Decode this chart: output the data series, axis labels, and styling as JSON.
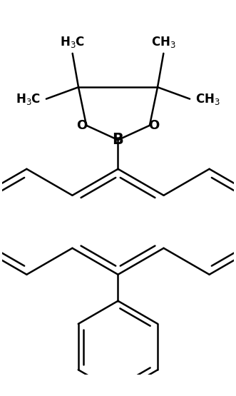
{
  "bg_color": "#ffffff",
  "line_color": "#000000",
  "lw": 1.8,
  "figsize": [
    3.31,
    5.55
  ],
  "dpi": 100,
  "xlim": [
    -2.2,
    2.2
  ],
  "ylim": [
    -3.2,
    3.5
  ]
}
